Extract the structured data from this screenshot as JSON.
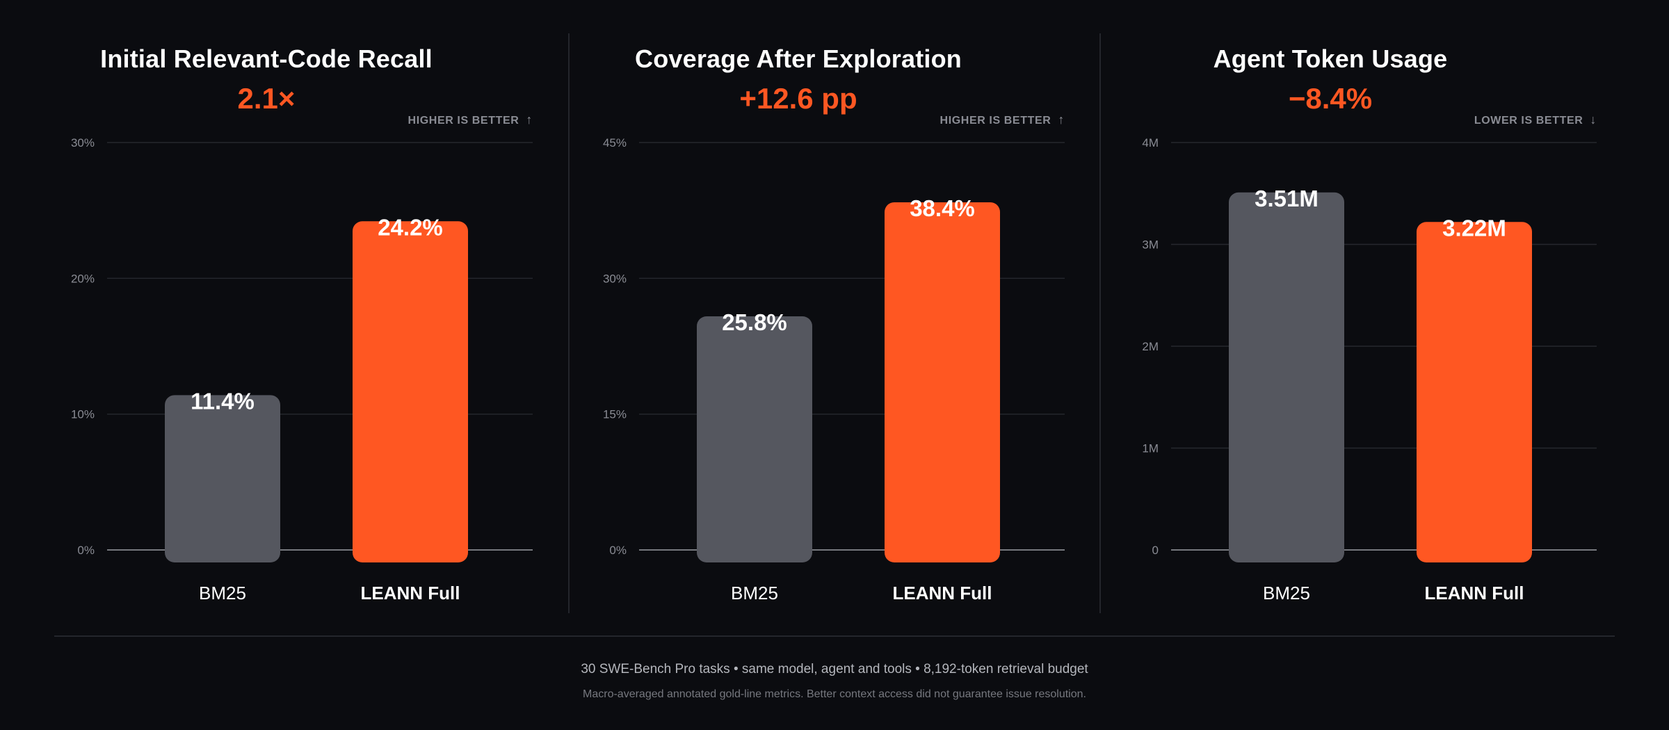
{
  "chart_data": [
    {
      "type": "bar",
      "title": "Initial Relevant-Code Recall",
      "delta": "2.1×",
      "hint": "HIGHER IS BETTER",
      "hint_arrow": "↑",
      "categories": [
        "BM25",
        "LEANN Full"
      ],
      "values": [
        11.4,
        24.2
      ],
      "value_labels": [
        "11.4%",
        "24.2%"
      ],
      "yticks": [
        0,
        10,
        20,
        30
      ],
      "ytick_labels": [
        "0%",
        "10%",
        "20%",
        "30%"
      ],
      "ylim": [
        0,
        30
      ],
      "colors": [
        "#55575f",
        "#ff5722"
      ],
      "grid": true
    },
    {
      "type": "bar",
      "title": "Coverage After Exploration",
      "delta": "+12.6 pp",
      "hint": "HIGHER IS BETTER",
      "hint_arrow": "↑",
      "categories": [
        "BM25",
        "LEANN Full"
      ],
      "values": [
        25.8,
        38.4
      ],
      "value_labels": [
        "25.8%",
        "38.4%"
      ],
      "yticks": [
        0,
        15,
        30,
        45
      ],
      "ytick_labels": [
        "0%",
        "15%",
        "30%",
        "45%"
      ],
      "ylim": [
        0,
        45
      ],
      "colors": [
        "#55575f",
        "#ff5722"
      ],
      "grid": true
    },
    {
      "type": "bar",
      "title": "Agent Token Usage",
      "delta": "−8.4%",
      "hint": "LOWER IS BETTER",
      "hint_arrow": "↓",
      "categories": [
        "BM25",
        "LEANN Full"
      ],
      "values": [
        3.51,
        3.22
      ],
      "value_labels": [
        "3.51M",
        "3.22M"
      ],
      "yticks": [
        0,
        1,
        2,
        3,
        4
      ],
      "ytick_labels": [
        "0",
        "1M",
        "2M",
        "3M",
        "4M"
      ],
      "ylim": [
        0,
        4
      ],
      "colors": [
        "#55575f",
        "#ff5722"
      ],
      "grid": true
    }
  ],
  "footer": {
    "main": "30 SWE-Bench Pro tasks  •  same model, agent and tools  •  8,192-token retrieval budget",
    "note": "Macro-averaged annotated gold-line metrics. Better context access did not guarantee issue resolution."
  },
  "colors": {
    "background": "#0b0c10",
    "accent": "#ff5722",
    "baseline_bar": "#55575f"
  }
}
